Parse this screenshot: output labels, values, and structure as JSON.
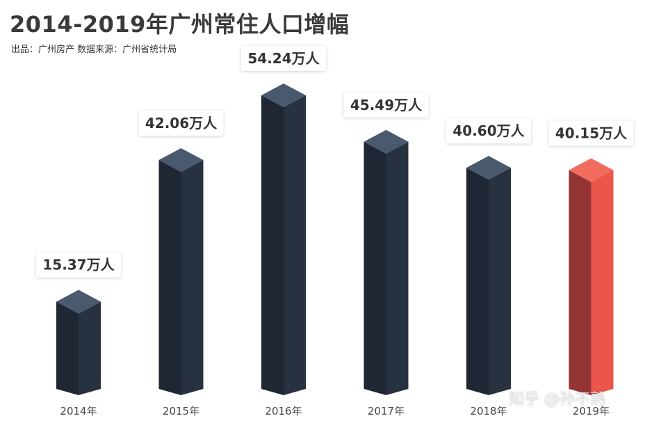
{
  "title": "2014-2019年广州常住人口增幅",
  "subtitle": "出品：广州房产   数据来源：广州省统计局",
  "watermark": "知乎 @孙不熟",
  "colors": {
    "bar_front": "#27313f",
    "bar_side": "#1e2733",
    "bar_top": "#4a5a6e",
    "highlight_front": "#ea564c",
    "highlight_side": "#943434",
    "highlight_top": "#f26b5f"
  },
  "chart_data": {
    "type": "bar",
    "title": "2014-2019年广州常住人口增幅",
    "categories": [
      "2014年",
      "2015年",
      "2016年",
      "2017年",
      "2018年",
      "2019年"
    ],
    "values": [
      15.37,
      42.06,
      54.24,
      45.49,
      40.6,
      40.15
    ],
    "value_labels": [
      "15.37万人",
      "42.06万人",
      "54.24万人",
      "45.49万人",
      "40.60万人",
      "40.15万人"
    ],
    "unit": "万人",
    "ylim": [
      0,
      60
    ],
    "highlight_index": 5,
    "grid": false
  }
}
